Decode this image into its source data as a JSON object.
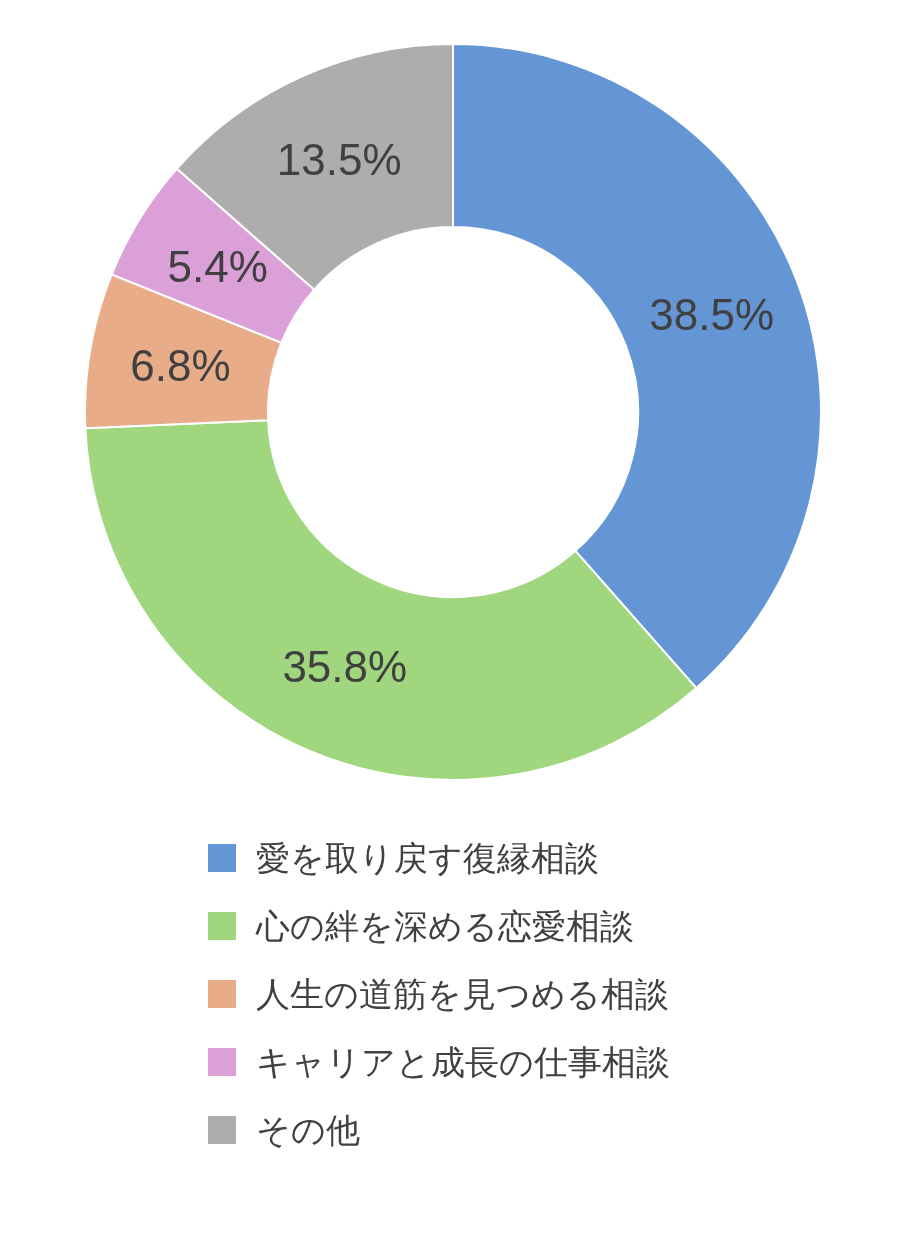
{
  "chart_data": {
    "type": "donut",
    "categories": [
      "愛を取り戻す復縁相談",
      "心の絆を深める恋愛相談",
      "人生の道筋を見つめる相談",
      "キャリアと成長の仕事相談",
      "その他"
    ],
    "values": [
      38.5,
      35.8,
      6.8,
      5.4,
      13.5
    ],
    "colors": [
      "#6495d5",
      "#a0d77e",
      "#e8ac88",
      "#dba0d8",
      "#adadad"
    ],
    "value_labels": [
      "38.5%",
      "35.8%",
      "6.8%",
      "5.4%",
      "13.5%"
    ],
    "legend": "bottom"
  }
}
